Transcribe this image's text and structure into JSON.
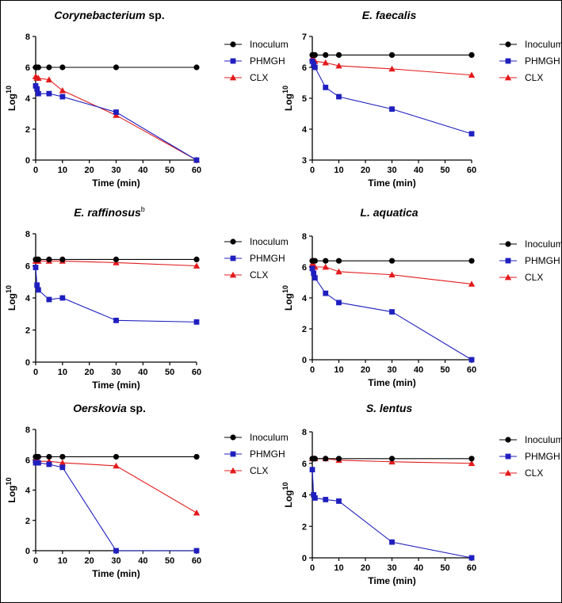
{
  "chart_data": [
    {
      "type": "line",
      "title": "Corynebacterium",
      "title_suffix": "sp.",
      "title_sup": "",
      "xlabel": "Time (min)",
      "ylabel": "Log",
      "ylabel_sup": "10",
      "xlim": [
        0,
        60
      ],
      "ylim": [
        0,
        8
      ],
      "xticks": [
        0,
        10,
        20,
        30,
        40,
        50,
        60
      ],
      "yticks": [
        0,
        2,
        4,
        6,
        8
      ],
      "series": [
        {
          "name": "Inoculum",
          "color": "#000000",
          "marker": "circle",
          "x": [
            0,
            0.5,
            1,
            5,
            10,
            30,
            60
          ],
          "y": [
            6,
            6,
            6,
            6,
            6,
            6,
            6
          ]
        },
        {
          "name": "PHMGH",
          "color": "#1f1fbf",
          "marker": "square",
          "x": [
            0,
            0.5,
            1,
            5,
            10,
            30,
            60
          ],
          "y": [
            4.8,
            4.6,
            4.3,
            4.3,
            4.1,
            3.1,
            0
          ]
        },
        {
          "name": "CLX",
          "color": "#e31a1c",
          "marker": "triangle",
          "x": [
            0,
            0.5,
            1,
            5,
            10,
            30,
            60
          ],
          "y": [
            5.4,
            5.3,
            5.3,
            5.2,
            4.5,
            2.9,
            0
          ]
        }
      ]
    },
    {
      "type": "line",
      "title": "E. faecalis",
      "title_suffix": "",
      "title_sup": "",
      "xlabel": "Time (min)",
      "ylabel": "Log",
      "ylabel_sup": "10",
      "xlim": [
        0,
        60
      ],
      "ylim": [
        3,
        7
      ],
      "xticks": [
        0,
        10,
        20,
        30,
        40,
        50,
        60
      ],
      "yticks": [
        3,
        4,
        5,
        6,
        7
      ],
      "series": [
        {
          "name": "Inoculum",
          "color": "#000000",
          "marker": "circle",
          "x": [
            0,
            0.5,
            1,
            5,
            10,
            30,
            60
          ],
          "y": [
            6.4,
            6.4,
            6.4,
            6.4,
            6.4,
            6.4,
            6.4
          ]
        },
        {
          "name": "PHMGH",
          "color": "#1f1fbf",
          "marker": "square",
          "x": [
            0,
            0.5,
            1,
            5,
            10,
            30,
            60
          ],
          "y": [
            6.2,
            6.1,
            6.0,
            5.35,
            5.05,
            4.65,
            3.85
          ]
        },
        {
          "name": "CLX",
          "color": "#e31a1c",
          "marker": "triangle",
          "x": [
            0,
            0.5,
            1,
            5,
            10,
            30,
            60
          ],
          "y": [
            6.3,
            6.25,
            6.2,
            6.15,
            6.05,
            5.95,
            5.75
          ]
        }
      ]
    },
    {
      "type": "line",
      "title": "E. raffinosus",
      "title_suffix": "",
      "title_sup": "b",
      "xlabel": "Time (min)",
      "ylabel": "Log",
      "ylabel_sup": "10",
      "xlim": [
        0,
        60
      ],
      "ylim": [
        0,
        8
      ],
      "xticks": [
        0,
        10,
        20,
        30,
        40,
        50,
        60
      ],
      "yticks": [
        0,
        2,
        4,
        6,
        8
      ],
      "series": [
        {
          "name": "Inoculum",
          "color": "#000000",
          "marker": "circle",
          "x": [
            0,
            0.5,
            1,
            5,
            10,
            30,
            60
          ],
          "y": [
            6.4,
            6.4,
            6.4,
            6.4,
            6.4,
            6.4,
            6.4
          ]
        },
        {
          "name": "PHMGH",
          "color": "#1f1fbf",
          "marker": "square",
          "x": [
            0,
            0.5,
            1,
            5,
            10,
            30,
            60
          ],
          "y": [
            5.9,
            4.8,
            4.5,
            3.9,
            4.0,
            2.6,
            2.5
          ]
        },
        {
          "name": "CLX",
          "color": "#e31a1c",
          "marker": "triangle",
          "x": [
            0,
            0.5,
            1,
            5,
            10,
            30,
            60
          ],
          "y": [
            6.3,
            6.3,
            6.3,
            6.3,
            6.3,
            6.2,
            6.0
          ]
        }
      ]
    },
    {
      "type": "line",
      "title": "L. aquatica",
      "title_suffix": "",
      "title_sup": "",
      "xlabel": "Time (min)",
      "ylabel": "Log",
      "ylabel_sup": "10",
      "xlim": [
        0,
        60
      ],
      "ylim": [
        0,
        8
      ],
      "xticks": [
        0,
        10,
        20,
        30,
        40,
        50,
        60
      ],
      "yticks": [
        0,
        2,
        4,
        6,
        8
      ],
      "series": [
        {
          "name": "Inoculum",
          "color": "#000000",
          "marker": "circle",
          "x": [
            0,
            0.5,
            1,
            5,
            10,
            30,
            60
          ],
          "y": [
            6.4,
            6.4,
            6.4,
            6.4,
            6.4,
            6.4,
            6.4
          ]
        },
        {
          "name": "PHMGH",
          "color": "#1f1fbf",
          "marker": "square",
          "x": [
            0,
            0.5,
            1,
            5,
            10,
            30,
            60
          ],
          "y": [
            5.9,
            5.6,
            5.3,
            4.3,
            3.7,
            3.1,
            0
          ]
        },
        {
          "name": "CLX",
          "color": "#e31a1c",
          "marker": "triangle",
          "x": [
            0,
            0.5,
            1,
            5,
            10,
            30,
            60
          ],
          "y": [
            6.2,
            6.1,
            6.0,
            6.0,
            5.7,
            5.5,
            4.9
          ]
        }
      ]
    },
    {
      "type": "line",
      "title": "Oerskovia",
      "title_suffix": "sp.",
      "title_sup": "",
      "xlabel": "Time (min)",
      "ylabel": "Log",
      "ylabel_sup": "10",
      "xlim": [
        0,
        60
      ],
      "ylim": [
        0,
        8
      ],
      "xticks": [
        0,
        10,
        20,
        30,
        40,
        50,
        60
      ],
      "yticks": [
        0,
        2,
        4,
        6,
        8
      ],
      "series": [
        {
          "name": "Inoculum",
          "color": "#000000",
          "marker": "circle",
          "x": [
            0,
            0.5,
            1,
            5,
            10,
            30,
            60
          ],
          "y": [
            6.2,
            6.2,
            6.2,
            6.2,
            6.2,
            6.2,
            6.2
          ]
        },
        {
          "name": "PHMGH",
          "color": "#1f1fbf",
          "marker": "square",
          "x": [
            0,
            0.5,
            1,
            5,
            10,
            30,
            60
          ],
          "y": [
            5.8,
            5.8,
            5.8,
            5.7,
            5.5,
            0,
            0
          ]
        },
        {
          "name": "CLX",
          "color": "#e31a1c",
          "marker": "triangle",
          "x": [
            0,
            0.5,
            1,
            5,
            10,
            30,
            60
          ],
          "y": [
            6.0,
            6.0,
            5.9,
            5.9,
            5.8,
            5.6,
            2.5
          ]
        }
      ]
    },
    {
      "type": "line",
      "title": "S. lentus",
      "title_suffix": "",
      "title_sup": "",
      "xlabel": "Time (min)",
      "ylabel": "Log",
      "ylabel_sup": "10",
      "xlim": [
        0,
        60
      ],
      "ylim": [
        0,
        8
      ],
      "xticks": [
        0,
        10,
        20,
        30,
        40,
        50,
        60
      ],
      "yticks": [
        0,
        2,
        4,
        6,
        8
      ],
      "series": [
        {
          "name": "Inoculum",
          "color": "#000000",
          "marker": "circle",
          "x": [
            0,
            0.5,
            1,
            5,
            10,
            30,
            60
          ],
          "y": [
            6.3,
            6.3,
            6.3,
            6.3,
            6.3,
            6.3,
            6.3
          ]
        },
        {
          "name": "PHMGH",
          "color": "#1f1fbf",
          "marker": "square",
          "x": [
            0,
            0.5,
            1,
            5,
            10,
            30,
            60
          ],
          "y": [
            5.6,
            4.0,
            3.8,
            3.7,
            3.6,
            1.0,
            0
          ]
        },
        {
          "name": "CLX",
          "color": "#e31a1c",
          "marker": "triangle",
          "x": [
            0,
            0.5,
            1,
            5,
            10,
            30,
            60
          ],
          "y": [
            6.3,
            6.3,
            6.3,
            6.3,
            6.2,
            6.1,
            6.0
          ]
        }
      ]
    }
  ]
}
